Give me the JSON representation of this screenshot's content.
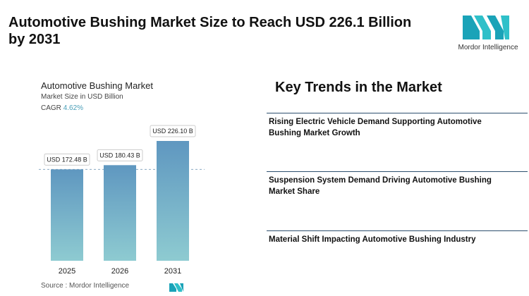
{
  "header": {
    "title": "Automotive Bushing Market Size to Reach USD 226.1 Billion by 2031"
  },
  "logo": {
    "text": "Mordor Intelligence"
  },
  "chart_data": {
    "type": "bar",
    "title": "Automotive Bushing Market",
    "subtitle": "Market Size in USD Billion",
    "cagr_label": "CAGR",
    "cagr": "4.62%",
    "categories": [
      "2025",
      "2026",
      "2031"
    ],
    "values": [
      172.48,
      180.43,
      226.1
    ],
    "value_labels": [
      "USD 172.48 B",
      "USD 180.43 B",
      "USD 226.10 B"
    ],
    "color": "#5f97c0",
    "color_bottom": "#8ecbd1",
    "source": "Source : Mordor Intelligence"
  },
  "key_trends": {
    "title": "Key Trends in the Market",
    "items": [
      "Rising Electric Vehicle Demand Supporting Automotive Bushing Market Growth",
      "Suspension System Demand Driving Automotive Bushing Market Share",
      "Material Shift Impacting Automotive Bushing Industry"
    ]
  }
}
